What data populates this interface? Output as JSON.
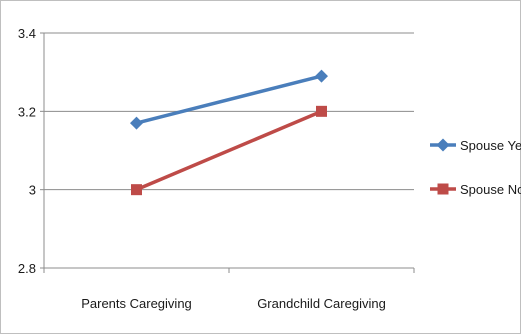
{
  "chart_data": {
    "type": "line",
    "title": "",
    "xlabel": "",
    "ylabel": "",
    "categories": [
      "Parents Caregiving",
      "Grandchild Caregiving"
    ],
    "ylim": [
      2.8,
      3.4
    ],
    "yticks": [
      "2.8",
      "3",
      "3.2",
      "3.4"
    ],
    "ytick_values": [
      2.8,
      3.0,
      3.2,
      3.4
    ],
    "grid": "horizontal",
    "legend": "right",
    "series": [
      {
        "name": "Spouse Yes",
        "values": [
          3.17,
          3.29
        ],
        "color": "#4a7ebb",
        "marker": "diamond"
      },
      {
        "name": "Spouse No",
        "values": [
          3.0,
          3.2
        ],
        "color": "#be4b48",
        "marker": "square"
      }
    ]
  }
}
